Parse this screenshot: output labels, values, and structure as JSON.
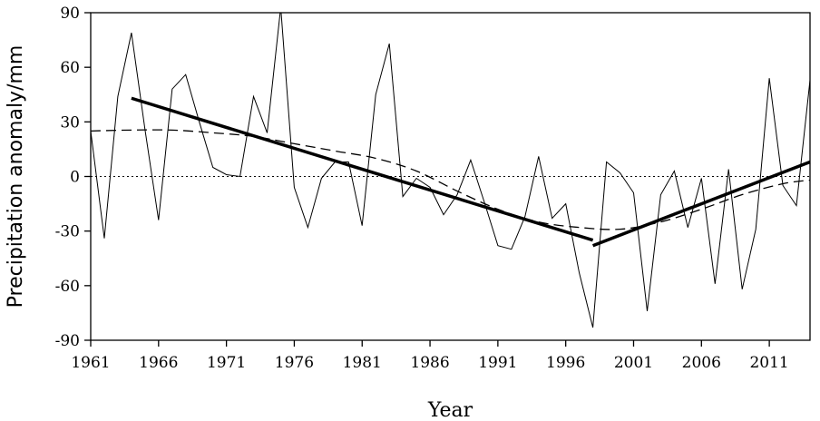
{
  "chart_data": {
    "type": "line",
    "xlabel": "Year",
    "ylabel": "Precipitation anomaly/mm",
    "xlim": [
      1961,
      2014
    ],
    "ylim": [
      -90,
      90
    ],
    "x_ticks": [
      1961,
      1966,
      1971,
      1976,
      1981,
      1986,
      1991,
      1996,
      2001,
      2006,
      2011
    ],
    "x_tick_labels": [
      "1961",
      "1966",
      "1971",
      "1976",
      "1981",
      "1986",
      "1991",
      "1996",
      "2001",
      "2006",
      "2011"
    ],
    "y_ticks": [
      90,
      60,
      30,
      0,
      -30,
      -60,
      -90
    ],
    "y_tick_labels": [
      "90",
      "60",
      "30",
      "0",
      "-30",
      "-60",
      "-90"
    ],
    "reference_line": {
      "y": 0,
      "style": "dotted"
    },
    "series": [
      {
        "style": "thin-solid",
        "x": [
          1961,
          1962,
          1963,
          1964,
          1965,
          1966,
          1967,
          1968,
          1969,
          1970,
          1971,
          1972,
          1973,
          1974,
          1975,
          1976,
          1977,
          1978,
          1979,
          1980,
          1981,
          1982,
          1983,
          1984,
          1985,
          1986,
          1987,
          1988,
          1989,
          1990,
          1991,
          1992,
          1993,
          1994,
          1995,
          1996,
          1997,
          1998,
          1999,
          2000,
          2001,
          2002,
          2003,
          2004,
          2005,
          2006,
          2007,
          2008,
          2009,
          2010,
          2011,
          2012,
          2013,
          2014
        ],
        "y": [
          25,
          -34,
          44,
          79,
          26,
          -24,
          48,
          56,
          30,
          5,
          1,
          0,
          44,
          24,
          93,
          -6,
          -28,
          -1,
          8,
          8,
          -27,
          45,
          73,
          -11,
          -1,
          -6,
          -21,
          -10,
          9,
          -14,
          -38,
          -40,
          -22,
          11,
          -23,
          -15,
          -53,
          -83,
          8,
          2,
          -9,
          -74,
          -10,
          3,
          -28,
          -1,
          -59,
          4,
          -62,
          -29,
          54,
          -5,
          -16,
          53
        ]
      },
      {
        "style": "thick-solid",
        "segments": [
          {
            "x": [
              1964,
              1998
            ],
            "y": [
              43,
              -35
            ]
          },
          {
            "x": [
              1998,
              2014
            ],
            "y": [
              -38,
              8
            ]
          }
        ]
      },
      {
        "style": "dashed",
        "x": [
          1961,
          1964,
          1967,
          1970,
          1973,
          1976,
          1979,
          1982,
          1985,
          1988,
          1991,
          1994,
          1997,
          2000,
          2003,
          2006,
          2009,
          2012,
          2014
        ],
        "y": [
          25,
          25.5,
          25.5,
          24,
          22,
          18,
          14,
          10,
          3,
          -8,
          -18,
          -25,
          -28,
          -29,
          -25,
          -18,
          -10,
          -4,
          -2
        ]
      }
    ]
  }
}
